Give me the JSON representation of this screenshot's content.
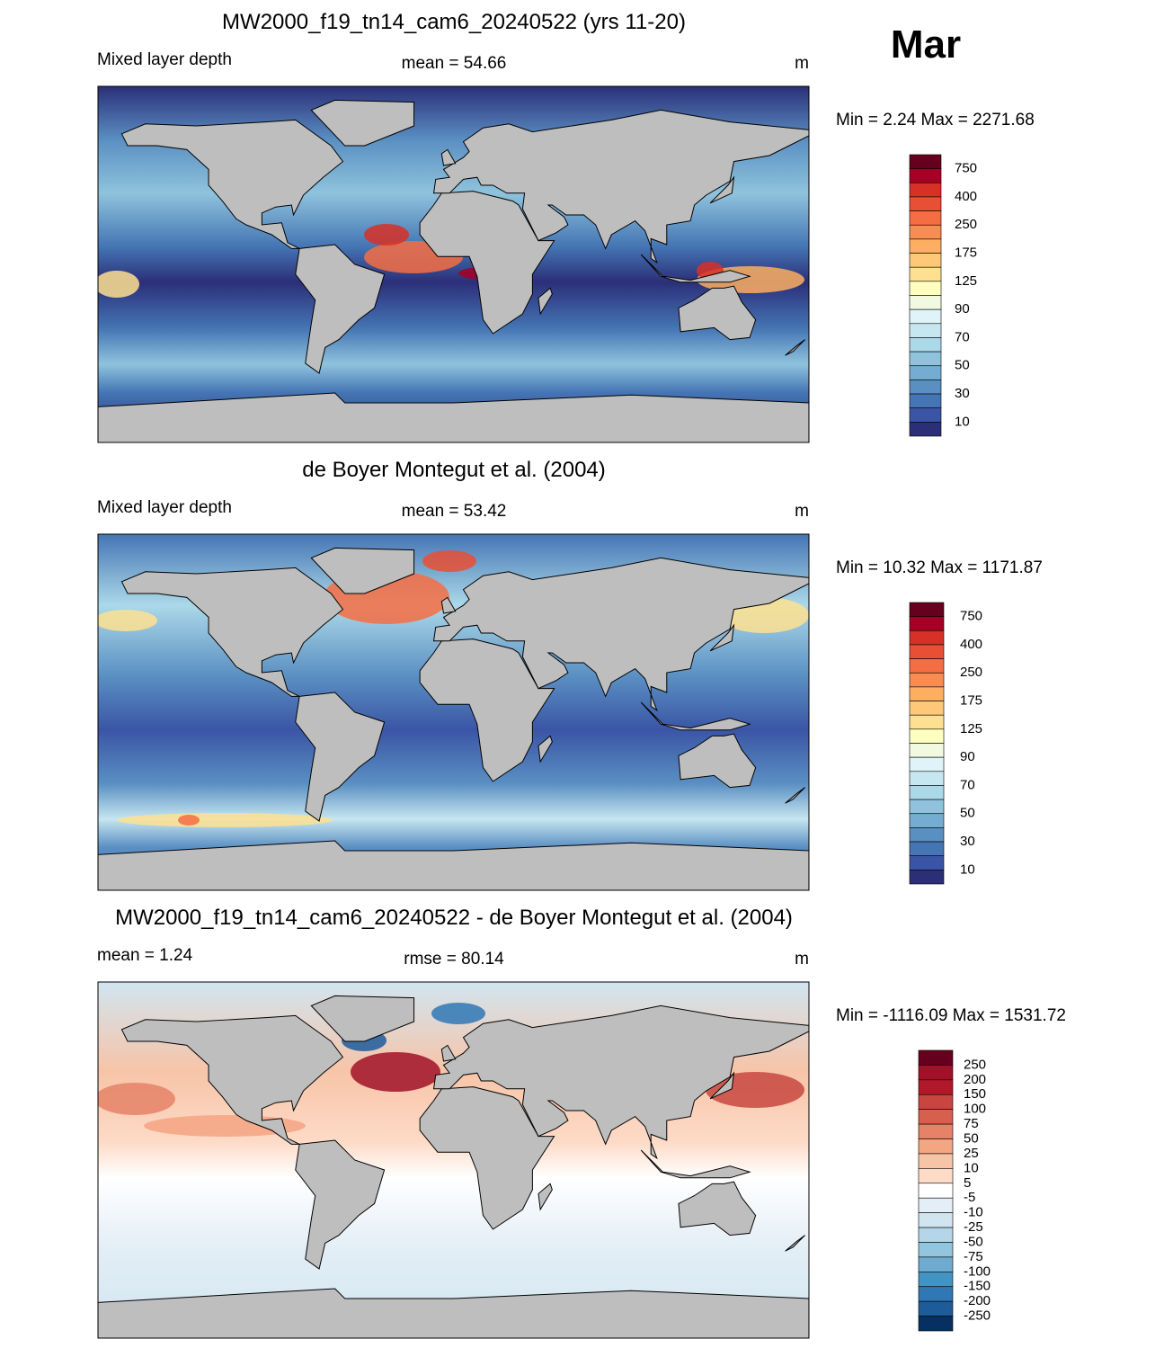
{
  "header": {
    "month": "Mar"
  },
  "panels": [
    {
      "title": "MW2000_f19_tn14_cam6_20240522 (yrs 11-20)",
      "left_label": "Mixed layer depth",
      "center_stat": "mean =  54.66",
      "units": "m",
      "min_max": "Min =   2.24 Max = 2271.68",
      "colorbar": {
        "labels": [
          "750",
          "400",
          "250",
          "175",
          "125",
          "90",
          "70",
          "50",
          "30",
          "10"
        ],
        "colors": [
          "#67001f",
          "#a50026",
          "#d73027",
          "#e94f35",
          "#f46d43",
          "#f88c51",
          "#fdae61",
          "#fdc878",
          "#fee090",
          "#ffffbf",
          "#f1f9e0",
          "#e0f3f8",
          "#c6e6f0",
          "#abd9e9",
          "#8fc3dd",
          "#74add1",
          "#5a8fc2",
          "#4575b4",
          "#3a55a5",
          "#2b2f78"
        ]
      }
    },
    {
      "title": "de Boyer Montegut et al. (2004)",
      "left_label": "Mixed layer depth",
      "center_stat": "mean =  53.42",
      "units": "m",
      "min_max": "Min =  10.32 Max = 1171.87",
      "colorbar": {
        "labels": [
          "750",
          "400",
          "250",
          "175",
          "125",
          "90",
          "70",
          "50",
          "30",
          "10"
        ],
        "colors": [
          "#67001f",
          "#a50026",
          "#d73027",
          "#e94f35",
          "#f46d43",
          "#f88c51",
          "#fdae61",
          "#fdc878",
          "#fee090",
          "#ffffbf",
          "#f1f9e0",
          "#e0f3f8",
          "#c6e6f0",
          "#abd9e9",
          "#8fc3dd",
          "#74add1",
          "#5a8fc2",
          "#4575b4",
          "#3a55a5",
          "#2b2f78"
        ]
      }
    },
    {
      "title": "MW2000_f19_tn14_cam6_20240522 - de Boyer Montegut et al. (2004)",
      "left_label": "mean =   1.24",
      "center_stat": "rmse =  80.14",
      "units": "m",
      "min_max": "Min = -1116.09 Max = 1531.72",
      "colorbar": {
        "labels": [
          "250",
          "200",
          "150",
          "100",
          "75",
          "50",
          "25",
          "10",
          "5",
          "-5",
          "-10",
          "-25",
          "-50",
          "-75",
          "-100",
          "-150",
          "-200",
          "-250"
        ],
        "colors": [
          "#67001f",
          "#a11228",
          "#b2182b",
          "#c8463f",
          "#d6604d",
          "#e58267",
          "#f4a582",
          "#f7c4a8",
          "#fddbc7",
          "#ffffff",
          "#e3eef6",
          "#d1e5f0",
          "#b5d6e8",
          "#92c5de",
          "#6fabd0",
          "#4393c3",
          "#2f78b5",
          "#1c5c9b",
          "#053061"
        ]
      }
    }
  ]
}
